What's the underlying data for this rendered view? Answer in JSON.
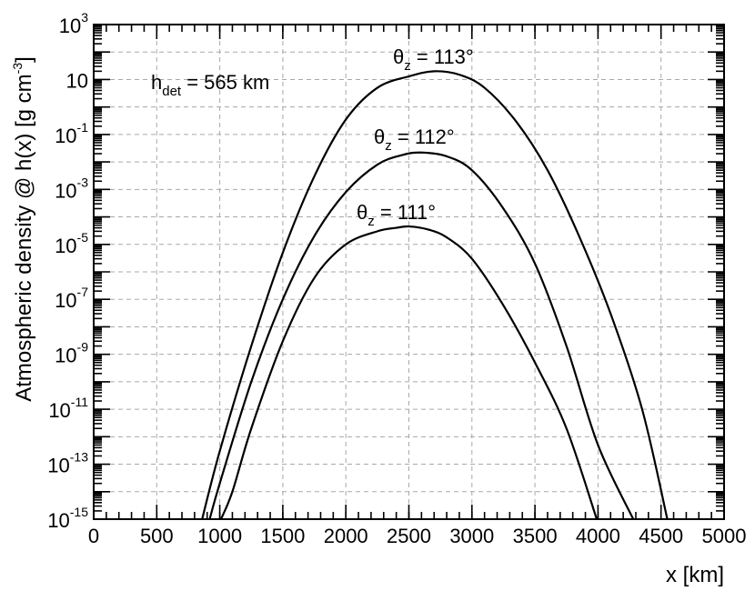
{
  "chart_data": {
    "type": "line",
    "xlabel": "x [km]",
    "ylabel": "Atmospheric density @ h(x) [g cm",
    "ylabel_exponent": "-3",
    "ylabel_close": "]",
    "xlim": [
      0,
      5000
    ],
    "ylim": [
      1e-15,
      1000
    ],
    "y_scale": "log",
    "grid": true,
    "x_ticks": [
      "0",
      "500",
      "1000",
      "1500",
      "2000",
      "2500",
      "3000",
      "3500",
      "4000",
      "4500",
      "5000"
    ],
    "y_ticks": [
      {
        "base": "10",
        "exp": "-15"
      },
      {
        "base": "10",
        "exp": "-13"
      },
      {
        "base": "10",
        "exp": "-11"
      },
      {
        "base": "10",
        "exp": "-9"
      },
      {
        "base": "10",
        "exp": "-7"
      },
      {
        "base": "10",
        "exp": "-5"
      },
      {
        "base": "10",
        "exp": "-3"
      },
      {
        "base": "10",
        "exp": "-1"
      },
      {
        "base": "10",
        "exp": ""
      },
      {
        "base": "10",
        "exp": "3"
      }
    ],
    "annotation": {
      "symbol": "h",
      "subscript": "det",
      "text": " = 565 km"
    },
    "series": [
      {
        "name": "θz = 113°",
        "label_symbol": "θ",
        "label_subscript": "z",
        "label_text": " = 113°",
        "x": [
          860,
          1000,
          1250,
          1500,
          1750,
          2000,
          2250,
          2500,
          2700,
          2900,
          3100,
          3350,
          3600,
          3850,
          4100,
          4350,
          4550
        ],
        "y": [
          1e-15,
          3e-13,
          2e-09,
          5e-06,
          0.003,
          0.35,
          5,
          13,
          20,
          15,
          5,
          0.3,
          0.005,
          2e-05,
          3e-08,
          1e-11,
          1e-15
        ]
      },
      {
        "name": "θz = 112°",
        "label_symbol": "θ",
        "label_subscript": "z",
        "label_text": " = 112°",
        "x": [
          920,
          1000,
          1250,
          1500,
          1750,
          2000,
          2250,
          2450,
          2600,
          2800,
          3000,
          3250,
          3500,
          3750,
          4000,
          4280
        ],
        "y": [
          1e-15,
          2e-14,
          1e-10,
          1e-07,
          2e-05,
          0.0008,
          0.008,
          0.018,
          0.022,
          0.016,
          0.005,
          0.0002,
          2e-06,
          2e-09,
          5e-13,
          1e-15
        ]
      },
      {
        "name": "θz = 111°",
        "label_symbol": "θ",
        "label_subscript": "z",
        "label_text": " = 111°",
        "x": [
          1010,
          1100,
          1250,
          1500,
          1750,
          2000,
          2250,
          2400,
          2500,
          2650,
          2800,
          3000,
          3250,
          3500,
          3750,
          3990
        ],
        "y": [
          1e-15,
          1e-14,
          2e-12,
          3e-09,
          6e-07,
          1e-05,
          3e-05,
          4e-05,
          4.5e-05,
          3.5e-05,
          1.8e-05,
          3e-06,
          6e-08,
          5e-10,
          2e-12,
          1e-15
        ]
      }
    ]
  }
}
